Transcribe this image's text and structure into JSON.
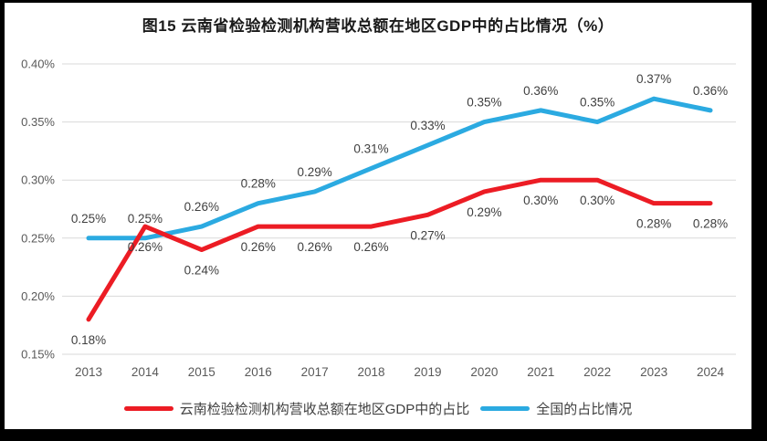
{
  "frame": {
    "background_color": "#000000",
    "panel_color": "#ffffff"
  },
  "chart_data": {
    "type": "line",
    "title": "图15 云南省检验检测机构营收总额在地区GDP中的占比情况（%）",
    "categories": [
      "2013",
      "2014",
      "2015",
      "2016",
      "2017",
      "2018",
      "2019",
      "2020",
      "2021",
      "2022",
      "2023",
      "2024"
    ],
    "y_axis": {
      "tick_labels": [
        "0.40%",
        "0.35%",
        "0.30%",
        "0.25%",
        "0.20%",
        "0.15%"
      ],
      "tick_values": [
        0.4,
        0.35,
        0.3,
        0.25,
        0.2,
        0.15
      ],
      "min": 0.15,
      "max": 0.4,
      "unit": "%"
    },
    "grid": true,
    "gridline_color": "#d9d9d9",
    "axis_text_color": "#595959",
    "data_label_color": "#3f3f3f",
    "legend_position": "bottom",
    "series": [
      {
        "key": "yunnan",
        "name": "云南检验检测机构营收总额在地区GDP中的占比",
        "color": "#EC1C24",
        "label_position": "below",
        "values": [
          0.18,
          0.26,
          0.24,
          0.26,
          0.26,
          0.26,
          0.27,
          0.29,
          0.3,
          0.3,
          0.28,
          0.28
        ],
        "labels": [
          "0.18%",
          "0.26%",
          "0.24%",
          "0.26%",
          "0.26%",
          "0.26%",
          "0.27%",
          "0.29%",
          "0.30%",
          "0.30%",
          "0.28%",
          "0.28%"
        ]
      },
      {
        "key": "national",
        "name": "全国的占比情况",
        "color": "#2BAAE1",
        "label_position": "above",
        "values": [
          0.25,
          0.25,
          0.26,
          0.28,
          0.29,
          0.31,
          0.33,
          0.35,
          0.36,
          0.35,
          0.37,
          0.36
        ],
        "labels": [
          "0.25%",
          "0.25%",
          "0.26%",
          "0.28%",
          "0.29%",
          "0.31%",
          "0.33%",
          "0.35%",
          "0.36%",
          "0.35%",
          "0.37%",
          "0.36%"
        ]
      }
    ]
  }
}
